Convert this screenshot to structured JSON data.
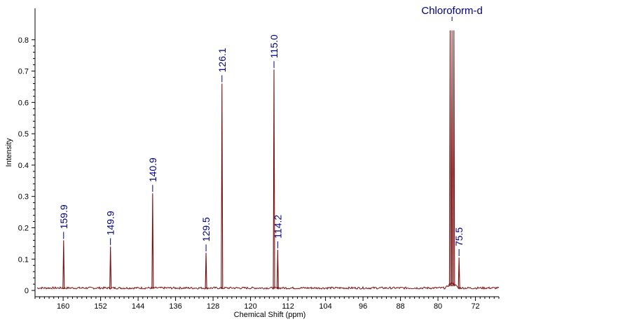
{
  "chart_data": {
    "type": "line",
    "xlabel": "Chemical Shift (ppm)",
    "ylabel": "Intensity",
    "xlim": [
      166,
      67
    ],
    "ylim": [
      -0.02,
      0.9
    ],
    "x_ticks": [
      160,
      152,
      144,
      136,
      128,
      120,
      112,
      104,
      96,
      88,
      80,
      72
    ],
    "y_ticks": [
      0,
      0.1,
      0.2,
      0.3,
      0.4,
      0.5,
      0.6,
      0.7,
      0.8
    ],
    "x_tick_labels": [
      "160",
      "152",
      "144",
      "136",
      "128",
      "120",
      "112",
      "104",
      "96",
      "88",
      "80",
      "72"
    ],
    "y_tick_labels": [
      "0",
      "0.1",
      "0.2",
      "0.3",
      "0.4",
      "0.5",
      "0.6",
      "0.7",
      "0.8"
    ],
    "grid": false,
    "colors": {
      "spectrum": "#7a1010",
      "labels": "#000080",
      "axes": "#000000"
    },
    "peaks": [
      {
        "x": 159.9,
        "height": 0.16,
        "label": "159.9"
      },
      {
        "x": 149.9,
        "height": 0.14,
        "label": "149.9"
      },
      {
        "x": 140.9,
        "height": 0.31,
        "label": "140.9"
      },
      {
        "x": 129.5,
        "height": 0.12,
        "label": "129.5"
      },
      {
        "x": 126.1,
        "height": 0.66,
        "label": "126.1"
      },
      {
        "x": 115.0,
        "height": 0.705,
        "label": "115.0"
      },
      {
        "x": 114.2,
        "height": 0.13,
        "label": "114.2"
      },
      {
        "x": 75.5,
        "height": 0.105,
        "label": "75.5"
      }
    ],
    "solvent": {
      "label": "Chloroform-d",
      "peaks": [
        {
          "x": 77.4,
          "height": 0.83
        },
        {
          "x": 77.0,
          "height": 0.83
        },
        {
          "x": 76.6,
          "height": 0.83
        }
      ]
    }
  }
}
